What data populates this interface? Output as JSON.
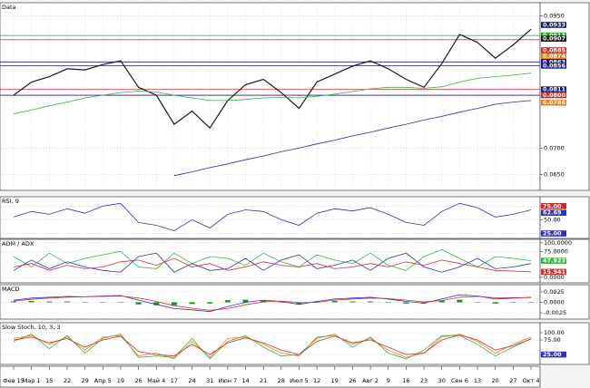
{
  "chart_data": [
    {
      "type": "line",
      "title": "Data",
      "categories": [
        "Фев 15",
        "Мар 1",
        "15",
        "22",
        "29",
        "Апр 5",
        "19",
        "26",
        "Май 4",
        "17",
        "24",
        "31",
        "Июн 7",
        "14",
        "21",
        "28",
        "Июл 5",
        "12",
        "19",
        "26",
        "Авг 2",
        "9",
        "16",
        "23",
        "30",
        "Сен 6",
        "13",
        "20",
        "27",
        "Окт 4"
      ],
      "ylim": [
        0.062,
        0.0975
      ],
      "yticks": [
        {
          "value": 0.095,
          "label": "0.0950"
        },
        {
          "value": 0.07,
          "label": "0.0700"
        },
        {
          "value": 0.065,
          "label": "0.0650"
        }
      ],
      "grid": true,
      "series": [
        {
          "color": "#1a1a1a",
          "values": [
            0.08,
            0.0825,
            0.0835,
            0.085,
            0.0848,
            0.0858,
            0.0865,
            0.0815,
            0.08,
            0.0745,
            0.077,
            0.0738,
            0.079,
            0.082,
            0.083,
            0.0805,
            0.0775,
            0.0825,
            0.084,
            0.0855,
            0.0865,
            0.085,
            0.083,
            0.0815,
            0.086,
            0.0915,
            0.09,
            0.087,
            0.0895,
            0.0925
          ]
        },
        {
          "color": "#3cb043",
          "values": [
            0.0765,
            0.0772,
            0.078,
            0.0787,
            0.0795,
            0.08,
            0.0805,
            0.0808,
            0.0806,
            0.08,
            0.0795,
            0.079,
            0.079,
            0.0792,
            0.0795,
            0.0796,
            0.0795,
            0.0798,
            0.0802,
            0.0807,
            0.0812,
            0.0815,
            0.0815,
            0.0813,
            0.0816,
            0.0825,
            0.0832,
            0.0835,
            0.0838,
            0.0842
          ]
        },
        {
          "color": "#2a2aa0",
          "values": [
            null,
            null,
            null,
            null,
            null,
            null,
            null,
            null,
            null,
            0.0648,
            0.0655,
            0.0663,
            0.067,
            0.0678,
            0.0685,
            0.0693,
            0.07,
            0.0708,
            0.0715,
            0.0723,
            0.073,
            0.0738,
            0.0745,
            0.0753,
            0.076,
            0.0768,
            0.0775,
            0.0783,
            0.0787,
            0.079
          ]
        }
      ],
      "levels": [
        {
          "value": 0.0913,
          "color": "#2a9d2a"
        },
        {
          "value": 0.0905,
          "color": "#d04040"
        },
        {
          "value": 0.0863,
          "color": "#202080"
        },
        {
          "value": 0.0856,
          "color": "#202080"
        },
        {
          "value": 0.0811,
          "color": "#d04040"
        },
        {
          "value": 0.08,
          "color": "#202080"
        }
      ],
      "price_labels": [
        {
          "value": 0.0933,
          "label": "0.0933",
          "color": "#1a1a60"
        },
        {
          "value": 0.0913,
          "label": "0.0913",
          "color": "#2a9d2a"
        },
        {
          "value": 0.0907,
          "label": "0.0907",
          "color": "#1a1a1a"
        },
        {
          "value": 0.0885,
          "label": "0.0885",
          "color": "#c03030"
        },
        {
          "value": 0.0874,
          "label": "0.0874",
          "color": "#e08020"
        },
        {
          "value": 0.0863,
          "label": "0.0863",
          "color": "#1a1a80"
        },
        {
          "value": 0.0856,
          "label": "0.0856",
          "color": "#1a1a80"
        },
        {
          "value": 0.0811,
          "label": "0.0811",
          "color": "#1a1a80"
        },
        {
          "value": 0.08,
          "label": "0.0800",
          "color": "#c03030"
        },
        {
          "value": 0.0786,
          "label": "0.0786",
          "color": "#e08020"
        }
      ]
    },
    {
      "type": "line",
      "title": "RSI, 9",
      "ylim": [
        16,
        92
      ],
      "yticks": [
        {
          "value": 75,
          "label": "75.00"
        },
        {
          "value": 50,
          "label": "50.00"
        },
        {
          "value": 25,
          "label": "25.00"
        }
      ],
      "series": [
        {
          "color": "#3030c0",
          "values": [
            55,
            65,
            60,
            70,
            62,
            75,
            80,
            45,
            40,
            30,
            50,
            35,
            60,
            68,
            65,
            50,
            40,
            62,
            70,
            66,
            72,
            60,
            45,
            40,
            65,
            80,
            72,
            55,
            60,
            68
          ]
        }
      ],
      "price_labels": [
        {
          "value": 75,
          "label": "75.00",
          "color": "#c03030"
        },
        {
          "value": 62.69,
          "label": "62.69",
          "color": "#3030c0"
        },
        {
          "value": 25,
          "label": "25.00",
          "color": "#3030c0"
        }
      ]
    },
    {
      "type": "line",
      "title": "ADM / ADX",
      "ylim": [
        -16,
        110
      ],
      "yticks": [
        {
          "value": 100,
          "label": "100.0000"
        },
        {
          "value": 75,
          "label": "75.0000"
        },
        {
          "value": 0,
          "label": "0.0000"
        }
      ],
      "series": [
        {
          "color": "#3cb043",
          "values": [
            60,
            30,
            70,
            40,
            55,
            65,
            75,
            30,
            25,
            70,
            40,
            60,
            55,
            35,
            70,
            45,
            30,
            65,
            50,
            40,
            70,
            35,
            20,
            60,
            80,
            55,
            30,
            60,
            55,
            48
          ]
        },
        {
          "color": "#3030c0",
          "values": [
            20,
            50,
            25,
            45,
            30,
            20,
            15,
            60,
            70,
            15,
            40,
            20,
            25,
            55,
            20,
            50,
            65,
            25,
            35,
            50,
            20,
            55,
            70,
            30,
            15,
            30,
            55,
            25,
            30,
            40
          ]
        },
        {
          "color": "#d03030",
          "values": [
            30,
            40,
            20,
            35,
            25,
            30,
            45,
            50,
            35,
            55,
            30,
            40,
            20,
            30,
            45,
            35,
            30,
            40,
            25,
            30,
            40,
            30,
            45,
            35,
            50,
            40,
            30,
            20,
            18,
            16
          ]
        }
      ],
      "price_labels": [
        {
          "value": 47.9237,
          "label": "47.9237",
          "color": "#3cb043"
        },
        {
          "value": 15.9417,
          "label": "15.9417",
          "color": "#d03030"
        }
      ]
    },
    {
      "type": "line",
      "title": "MACD",
      "ylim": [
        -0.004,
        0.0042
      ],
      "yticks": [
        {
          "value": 0.0025,
          "label": "0.0025"
        },
        {
          "value": 0,
          "label": "0.0000"
        },
        {
          "value": -0.0025,
          "label": "-0.0025"
        }
      ],
      "series": [
        {
          "kind": "bar",
          "color": "#1f8a1f",
          "values": [
            0.0002,
            0.0003,
            0.0002,
            0.0002,
            0,
            0.0001,
            0.0001,
            -0.0005,
            -0.0007,
            -0.0007,
            -0.0004,
            -0.0003,
            0.0005,
            0.0006,
            0.0004,
            -0.0001,
            -0.0004,
            0.0002,
            0.0003,
            0.0002,
            0.0002,
            -0.0001,
            -0.0003,
            -0.0003,
            0.0004,
            0.0006,
            0.0001,
            -0.0003,
            -0.0001,
            0.0001
          ]
        },
        {
          "color": "#3030c0",
          "values": [
            0.0005,
            0.001,
            0.0012,
            0.0014,
            0.0013,
            0.0015,
            0.0016,
            0.0005,
            -0.0005,
            -0.0015,
            -0.0018,
            -0.0022,
            -0.001,
            0,
            0.0005,
            0.0002,
            -0.0005,
            0.0002,
            0.0008,
            0.001,
            0.0012,
            0.0008,
            0.0002,
            -0.0002,
            0.0008,
            0.0018,
            0.0015,
            0.0008,
            0.001,
            0.0012
          ]
        },
        {
          "color": "#d03030",
          "values": [
            0.0003,
            0.0007,
            0.001,
            0.0012,
            0.0013,
            0.0014,
            0.0015,
            0.001,
            0.0002,
            -0.0008,
            -0.0014,
            -0.0019,
            -0.0015,
            -0.0006,
            0.0001,
            0.0003,
            -0.0001,
            0,
            0.0005,
            0.0008,
            0.001,
            0.0009,
            0.0005,
            0.0001,
            0.0004,
            0.0012,
            0.0014,
            0.0011,
            0.0011,
            0.0011
          ]
        }
      ]
    },
    {
      "type": "line",
      "title": "Slow Stoch, 10, 3, 3",
      "ylim": [
        -9,
        134
      ],
      "yticks": [
        {
          "value": 100,
          "label": "100.00"
        },
        {
          "value": 75,
          "label": "75.00"
        },
        {
          "value": 25,
          "label": "25.00"
        }
      ],
      "series": [
        {
          "color": "#f08020",
          "values": [
            80,
            90,
            60,
            85,
            40,
            85,
            90,
            20,
            30,
            10,
            70,
            15,
            80,
            85,
            60,
            30,
            20,
            85,
            90,
            60,
            80,
            40,
            15,
            30,
            85,
            95,
            70,
            30,
            60,
            85
          ]
        },
        {
          "color": "#3cb043",
          "values": [
            70,
            95,
            45,
            90,
            30,
            80,
            95,
            15,
            20,
            15,
            80,
            10,
            70,
            90,
            50,
            20,
            25,
            80,
            95,
            50,
            85,
            30,
            10,
            40,
            90,
            90,
            60,
            20,
            50,
            80
          ]
        },
        {
          "color": "#d03030",
          "values": [
            75,
            85,
            65,
            80,
            50,
            75,
            88,
            35,
            25,
            20,
            60,
            25,
            65,
            82,
            65,
            40,
            25,
            70,
            88,
            65,
            75,
            50,
            25,
            30,
            75,
            92,
            75,
            40,
            55,
            78
          ]
        }
      ],
      "price_labels": [
        {
          "value": 25,
          "label": "25.00",
          "color": "#3030c0"
        }
      ]
    }
  ]
}
